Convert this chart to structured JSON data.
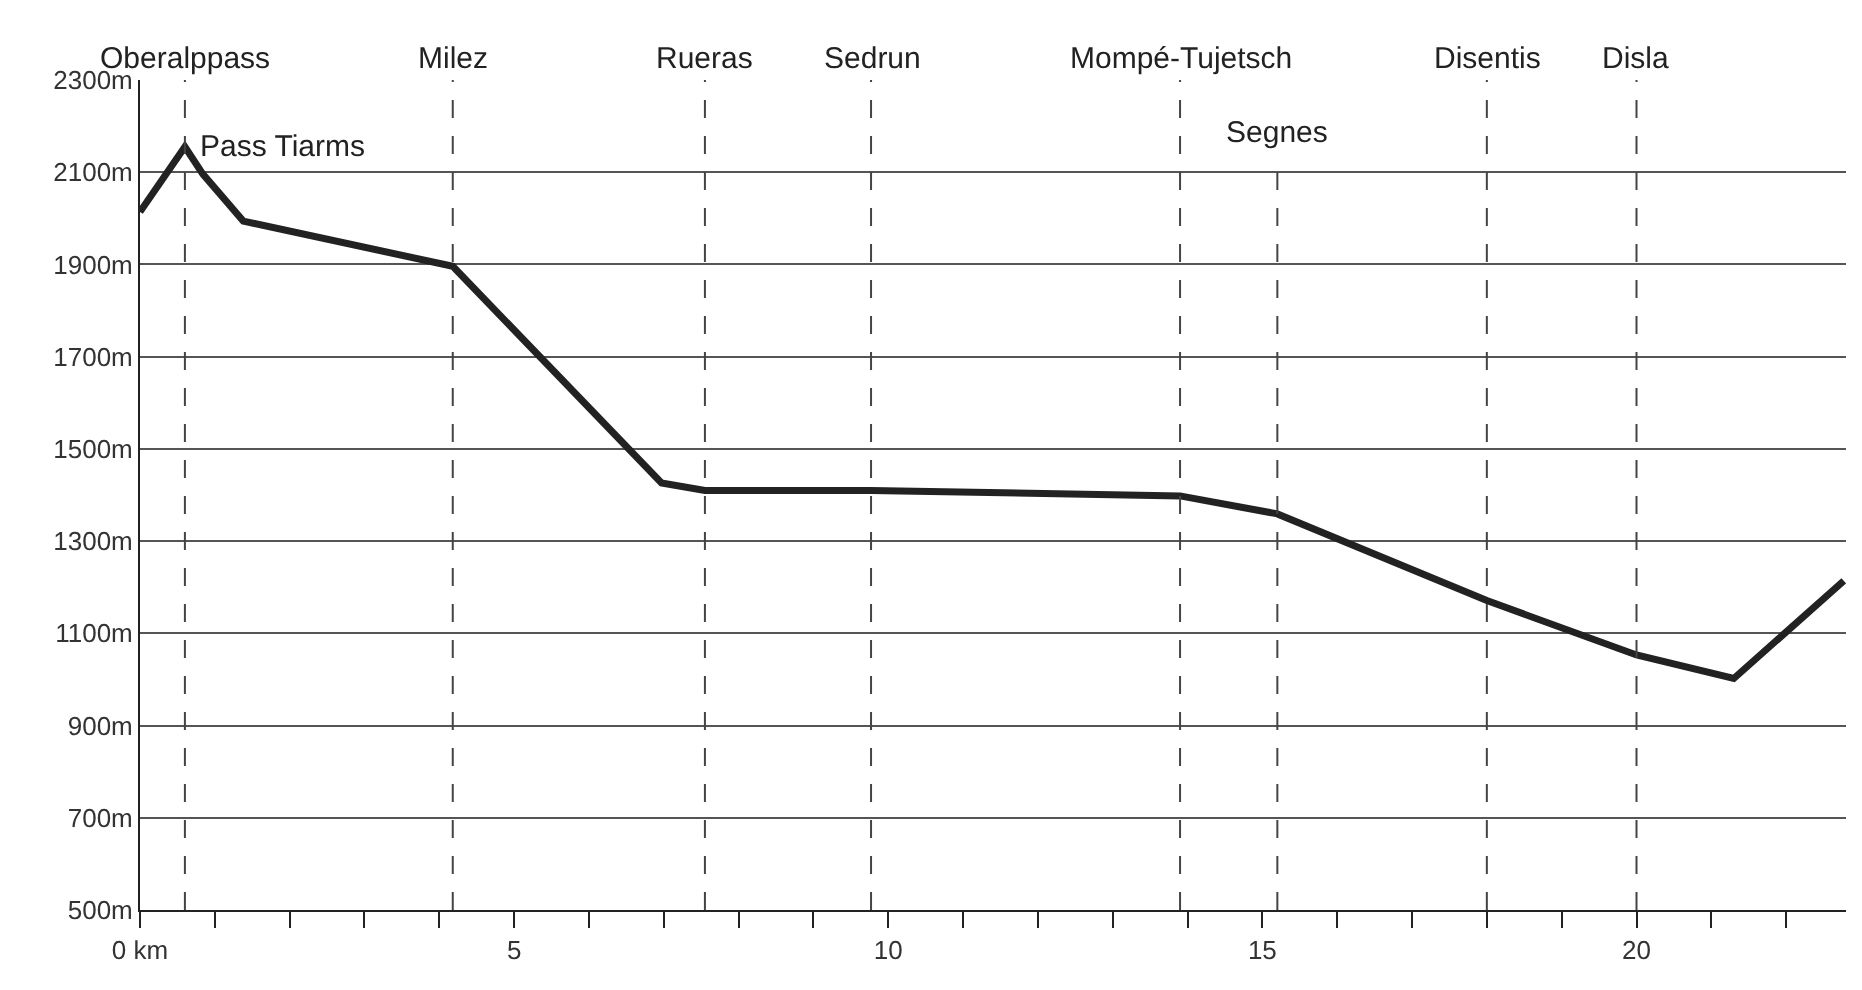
{
  "chart_data": {
    "type": "line",
    "x": [
      0,
      0.6,
      0.84,
      1.38,
      4.18,
      6.97,
      7.55,
      9.77,
      13.9,
      15.2,
      18.0,
      20.0,
      21.3,
      22.77
    ],
    "series": [
      {
        "color": "#222222",
        "values": [
          2014,
          2155,
          2096,
          1994,
          1896,
          1426,
          1410,
          1410,
          1398,
          1359,
          1171,
          1053,
          1002,
          1214
        ]
      }
    ],
    "xlim": [
      0,
      22.8
    ],
    "xticks": [
      {
        "value": 0,
        "label": "0 km"
      },
      {
        "value": 1,
        "label": null
      },
      {
        "value": 2,
        "label": null
      },
      {
        "value": 3,
        "label": null
      },
      {
        "value": 4,
        "label": null
      },
      5,
      {
        "value": 6,
        "label": null
      },
      {
        "value": 7,
        "label": null
      },
      {
        "value": 8,
        "label": null
      },
      {
        "value": 9,
        "label": null
      },
      10,
      {
        "value": 11,
        "label": null
      },
      {
        "value": 12,
        "label": null
      },
      {
        "value": 13,
        "label": null
      },
      {
        "value": 14,
        "label": null
      },
      15,
      {
        "value": 16,
        "label": null
      },
      {
        "value": 17,
        "label": null
      },
      {
        "value": 18,
        "label": null
      },
      {
        "value": 19,
        "label": null
      },
      20,
      {
        "value": 21,
        "label": null
      },
      {
        "value": 22,
        "label": null
      }
    ],
    "ylim": [
      500,
      2300
    ],
    "yticks": [
      {
        "value": 500,
        "label": "500m"
      },
      {
        "value": 700,
        "label": "700m"
      },
      {
        "value": 900,
        "label": "900m"
      },
      {
        "value": 1100,
        "label": "1100m"
      },
      {
        "value": 1300,
        "label": "1300m"
      },
      {
        "value": 1500,
        "label": "1500m"
      },
      {
        "value": 1700,
        "label": "1700m"
      },
      {
        "value": 1900,
        "label": "1900m"
      },
      {
        "value": 2100,
        "label": "2100m"
      },
      {
        "value": 2300,
        "label": "2300m"
      }
    ],
    "grid": "y",
    "marker": "none",
    "line_style": "solid",
    "ref_lines": [
      {
        "axis": "x",
        "value": 0.6,
        "label": "Oberalppass",
        "line_style": "dashed"
      },
      {
        "axis": "x",
        "value": 4.18,
        "label": "Milez",
        "line_style": "dashed"
      },
      {
        "axis": "x",
        "value": 7.55,
        "label": "Rueras",
        "line_style": "dashed"
      },
      {
        "axis": "x",
        "value": 9.77,
        "label": "Sedrun",
        "line_style": "dashed"
      },
      {
        "axis": "x",
        "value": 13.9,
        "label": "Mompé-Tujetsch",
        "line_style": "dashed"
      },
      {
        "axis": "x",
        "value": 15.2,
        "label": "Segnes",
        "line_style": "dashed"
      },
      {
        "axis": "x",
        "value": 18.0,
        "label": "Disentis",
        "line_style": "dashed"
      },
      {
        "axis": "x",
        "value": 20.0,
        "label": "Disla",
        "line_style": "dashed"
      }
    ],
    "annotations": [
      {
        "text": "Pass Tiarms",
        "x": 0.6,
        "y": 2155
      }
    ]
  }
}
